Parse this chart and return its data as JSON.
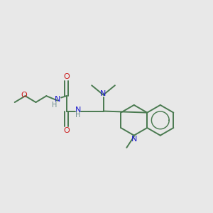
{
  "bg_color": "#e8e8e8",
  "bond_color": "#4a7a50",
  "N_color": "#1a1acc",
  "O_color": "#cc1a1a",
  "H_color": "#6a8a8a",
  "lw": 1.4,
  "figsize": [
    3.0,
    3.0
  ],
  "dpi": 100,
  "xlim": [
    0,
    10
  ],
  "ylim": [
    0,
    10
  ]
}
